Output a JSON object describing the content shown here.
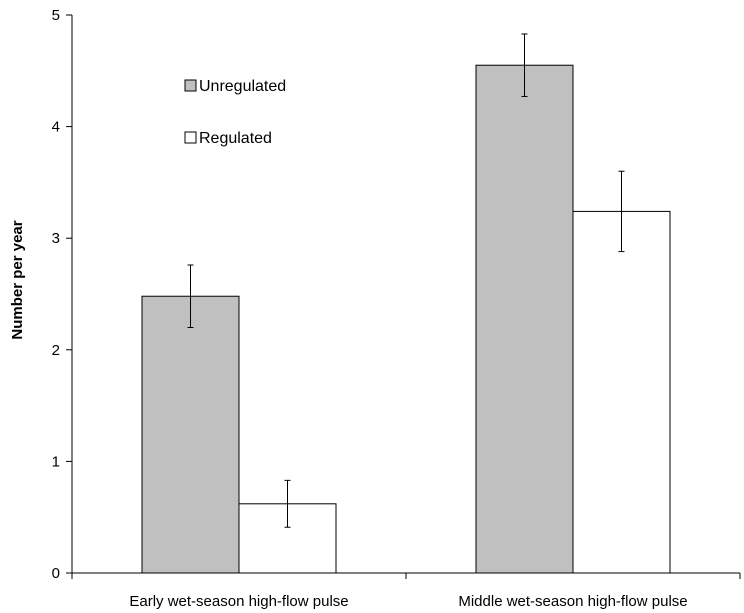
{
  "chart_data": {
    "type": "bar",
    "title": "",
    "xlabel": "",
    "ylabel": "Number per year",
    "ylim": [
      0,
      5
    ],
    "yticks": [
      0,
      1,
      2,
      3,
      4,
      5
    ],
    "grid": false,
    "legend_position": "top-left",
    "categories": [
      "Early wet-season high-flow pulse",
      "Middle wet-season high-flow pulse"
    ],
    "series": [
      {
        "name": "Unregulated",
        "color": "#c0c0c0",
        "values": [
          2.48,
          4.55
        ],
        "error_low": [
          2.2,
          4.27
        ],
        "error_high": [
          2.76,
          4.83
        ]
      },
      {
        "name": "Regulated",
        "color": "#ffffff",
        "values": [
          0.62,
          3.24
        ],
        "error_low": [
          0.41,
          2.88
        ],
        "error_high": [
          0.83,
          3.6
        ]
      }
    ]
  }
}
